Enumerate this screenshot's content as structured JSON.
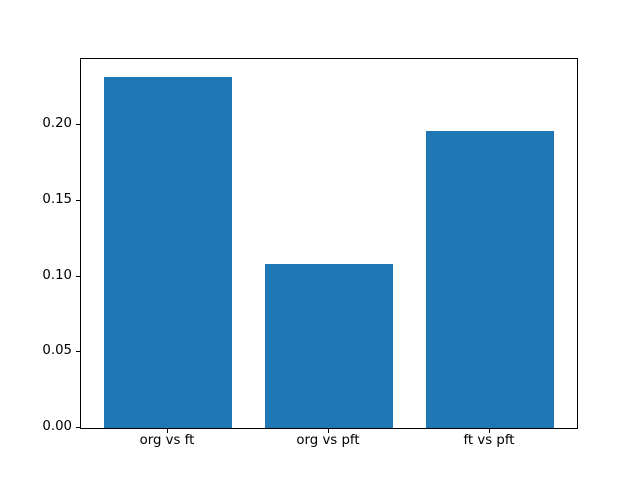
{
  "chart_data": {
    "type": "bar",
    "categories": [
      "org vs ft",
      "org vs pft",
      "ft vs pft"
    ],
    "values": [
      0.232,
      0.108,
      0.196
    ],
    "title": "",
    "xlabel": "",
    "ylabel": "",
    "ylim": [
      0,
      0.2436
    ],
    "xlim": [
      -0.54,
      2.54
    ],
    "bar_positions": [
      0,
      1,
      2
    ],
    "bar_width": 0.8,
    "yticks": [
      0.0,
      0.05,
      0.1,
      0.15,
      0.2
    ],
    "ytick_labels": [
      "0.00",
      "0.05",
      "0.10",
      "0.15",
      "0.20"
    ],
    "grid": false,
    "legend": false,
    "bar_color": "#1f77b4",
    "spine_color": "#000000",
    "background_color": "#ffffff"
  }
}
